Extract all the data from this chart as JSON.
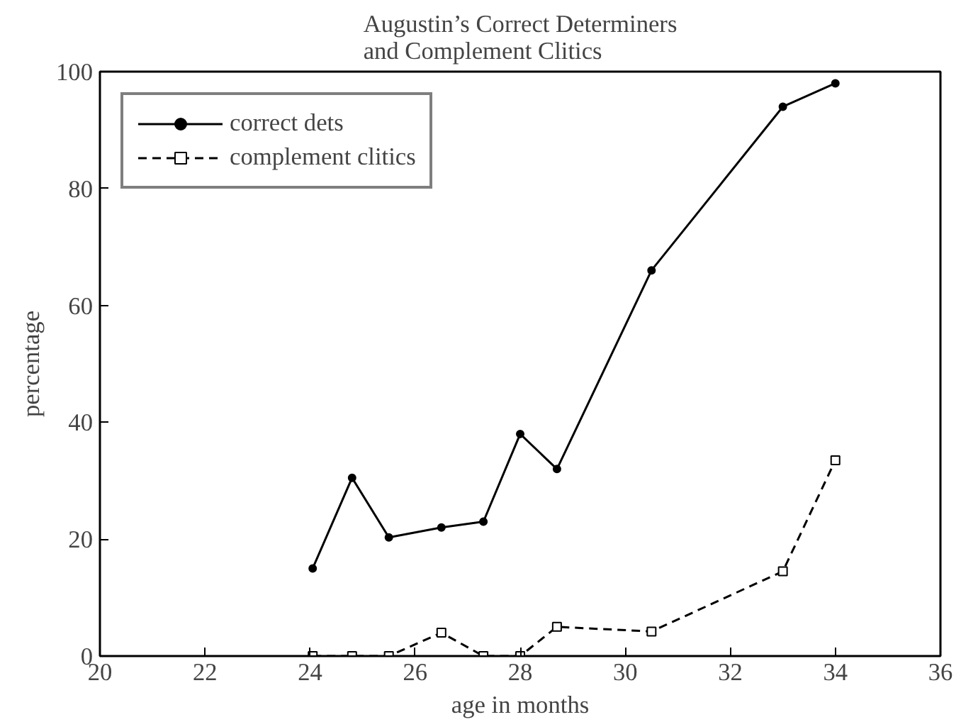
{
  "chart_data": {
    "type": "line",
    "title": "Augustin’s Correct Determiners\nand Complement Clitics",
    "xlabel": "age in months",
    "ylabel": "percentage",
    "xlim": [
      20,
      36
    ],
    "xticks": [
      20,
      22,
      24,
      26,
      28,
      30,
      32,
      34,
      36
    ],
    "ylim": [
      0,
      100
    ],
    "yticks": [
      0,
      20,
      40,
      60,
      80,
      100
    ],
    "grid": false,
    "legend": "top left",
    "series": [
      {
        "name": "correct dets",
        "color": "#000000",
        "line_style": "solid",
        "marker": "circle",
        "x": [
          24.05,
          24.8,
          25.5,
          26.5,
          27.3,
          28,
          28.7,
          30.5,
          33,
          34
        ],
        "values": [
          15,
          30.5,
          20.3,
          22,
          23,
          38,
          32,
          66,
          94,
          98
        ]
      },
      {
        "name": "complement clitics",
        "color": "#000000",
        "line_style": "dashed",
        "marker": "square",
        "x": [
          24.05,
          24.8,
          25.5,
          26.5,
          27.3,
          28,
          28.7,
          30.5,
          33,
          34
        ],
        "values": [
          0,
          0,
          0,
          4,
          0,
          0,
          5,
          4.2,
          14.5,
          33.5
        ]
      }
    ]
  }
}
